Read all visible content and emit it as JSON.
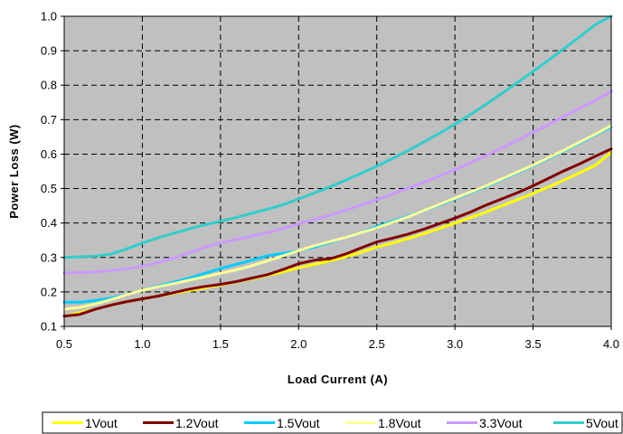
{
  "chart_data": {
    "type": "line",
    "title": "",
    "xlabel": "Load Current (A)",
    "ylabel": "Power Loss (W)",
    "xlim": [
      0.5,
      4.0
    ],
    "ylim": [
      0.1,
      1.0
    ],
    "xticks": [
      "0.5",
      "1.0",
      "1.5",
      "2.0",
      "2.5",
      "3.0",
      "3.5",
      "4.0"
    ],
    "yticks": [
      "0.1",
      "0.2",
      "0.3",
      "0.4",
      "0.5",
      "0.6",
      "0.7",
      "0.8",
      "0.9",
      "1.0"
    ],
    "grid": true,
    "legend_position": "bottom",
    "plot_background": "#c0c0c0",
    "x": [
      0.5,
      0.6,
      0.7,
      0.8,
      0.9,
      1.0,
      1.1,
      1.2,
      1.3,
      1.4,
      1.5,
      1.6,
      1.7,
      1.8,
      1.9,
      2.0,
      2.1,
      2.2,
      2.3,
      2.4,
      2.5,
      2.6,
      2.7,
      2.8,
      2.9,
      3.0,
      3.1,
      3.2,
      3.3,
      3.4,
      3.5,
      3.6,
      3.7,
      3.8,
      3.9,
      4.0
    ],
    "series": [
      {
        "name": "1Vout",
        "color": "#ffff00",
        "values": [
          0.13,
          0.14,
          0.15,
          0.162,
          0.172,
          0.18,
          0.188,
          0.196,
          0.204,
          0.212,
          0.22,
          0.229,
          0.238,
          0.248,
          0.258,
          0.27,
          0.28,
          0.29,
          0.302,
          0.315,
          0.33,
          0.342,
          0.355,
          0.369,
          0.384,
          0.4,
          0.416,
          0.432,
          0.45,
          0.468,
          0.486,
          0.505,
          0.525,
          0.546,
          0.568,
          0.605
        ]
      },
      {
        "name": "1.2Vout",
        "color": "#800000",
        "values": [
          0.13,
          0.135,
          0.15,
          0.162,
          0.172,
          0.18,
          0.188,
          0.198,
          0.208,
          0.216,
          0.222,
          0.23,
          0.24,
          0.25,
          0.265,
          0.282,
          0.292,
          0.296,
          0.31,
          0.328,
          0.345,
          0.356,
          0.368,
          0.382,
          0.398,
          0.414,
          0.432,
          0.452,
          0.47,
          0.488,
          0.508,
          0.53,
          0.552,
          0.572,
          0.594,
          0.615
        ]
      },
      {
        "name": "1.5Vout",
        "color": "#00ccff",
        "values": [
          0.17,
          0.17,
          0.175,
          0.182,
          0.192,
          0.205,
          0.217,
          0.228,
          0.24,
          0.254,
          0.268,
          0.28,
          0.292,
          0.305,
          0.312,
          0.32,
          0.33,
          0.344,
          0.358,
          0.372,
          0.39,
          0.405,
          0.42,
          0.436,
          0.452,
          0.47,
          0.488,
          0.506,
          0.526,
          0.546,
          0.566,
          0.588,
          0.61,
          0.633,
          0.656,
          0.68
        ]
      },
      {
        "name": "1.8Vout",
        "color": "#ffff99",
        "values": [
          0.15,
          0.155,
          0.165,
          0.178,
          0.192,
          0.205,
          0.215,
          0.224,
          0.234,
          0.244,
          0.254,
          0.264,
          0.276,
          0.29,
          0.305,
          0.32,
          0.334,
          0.346,
          0.358,
          0.372,
          0.386,
          0.402,
          0.418,
          0.436,
          0.454,
          0.472,
          0.49,
          0.508,
          0.528,
          0.548,
          0.568,
          0.59,
          0.612,
          0.635,
          0.658,
          0.683
        ]
      },
      {
        "name": "3.3Vout",
        "color": "#cc99ff",
        "values": [
          0.255,
          0.256,
          0.258,
          0.262,
          0.267,
          0.275,
          0.285,
          0.298,
          0.314,
          0.33,
          0.342,
          0.352,
          0.362,
          0.372,
          0.384,
          0.398,
          0.41,
          0.423,
          0.437,
          0.452,
          0.468,
          0.484,
          0.501,
          0.518,
          0.536,
          0.555,
          0.575,
          0.596,
          0.618,
          0.64,
          0.663,
          0.686,
          0.71,
          0.733,
          0.756,
          0.782
        ]
      },
      {
        "name": "5Vout",
        "color": "#33cccc",
        "values": [
          0.3,
          0.302,
          0.304,
          0.31,
          0.325,
          0.342,
          0.357,
          0.37,
          0.383,
          0.395,
          0.405,
          0.416,
          0.428,
          0.44,
          0.453,
          0.47,
          0.487,
          0.505,
          0.524,
          0.544,
          0.565,
          0.587,
          0.61,
          0.635,
          0.66,
          0.687,
          0.715,
          0.745,
          0.776,
          0.808,
          0.84,
          0.873,
          0.907,
          0.941,
          0.976,
          1.0
        ]
      }
    ]
  }
}
